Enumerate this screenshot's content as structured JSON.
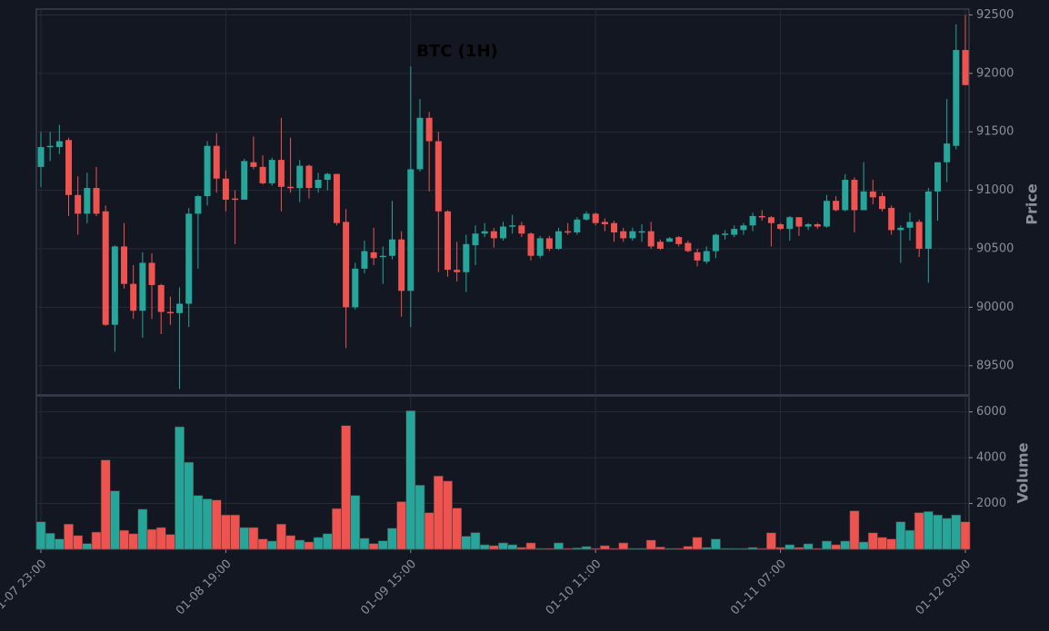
{
  "chart_data": {
    "type": "candlestick",
    "title": "BTC (1H)",
    "y_label": "Price",
    "volume_label": "Volume",
    "categories": [
      "01-07 23:00",
      null,
      null,
      null,
      null,
      null,
      null,
      null,
      null,
      null,
      null,
      null,
      null,
      null,
      null,
      null,
      null,
      null,
      null,
      null,
      "01-08 19:00",
      null,
      null,
      null,
      null,
      null,
      null,
      null,
      null,
      null,
      null,
      null,
      null,
      null,
      null,
      null,
      null,
      null,
      null,
      null,
      "01-09 15:00",
      null,
      null,
      null,
      null,
      null,
      null,
      null,
      null,
      null,
      null,
      null,
      null,
      null,
      null,
      null,
      null,
      null,
      null,
      null,
      "01-10 11:00",
      null,
      null,
      null,
      null,
      null,
      null,
      null,
      null,
      null,
      null,
      null,
      null,
      null,
      null,
      null,
      null,
      null,
      null,
      null,
      "01-11 07:00",
      null,
      null,
      null,
      null,
      null,
      null,
      null,
      null,
      null,
      null,
      null,
      null,
      null,
      null,
      null,
      null,
      null,
      null,
      null,
      "01-12 03:00"
    ],
    "open": [
      91200,
      91370,
      91370,
      91430,
      90960,
      90800,
      91020,
      90820,
      89850,
      90520,
      90200,
      89970,
      90380,
      90190,
      89960,
      89950,
      90030,
      90800,
      90950,
      91380,
      91100,
      90930,
      90920,
      91240,
      91200,
      91060,
      91260,
      91030,
      91020,
      91210,
      91020,
      91090,
      91140,
      90730,
      90000,
      90330,
      90470,
      90430,
      90440,
      90580,
      90140,
      91180,
      91620,
      91420,
      90820,
      90320,
      90300,
      90530,
      90630,
      90650,
      90590,
      90690,
      90700,
      90630,
      90440,
      90590,
      90500,
      90650,
      90640,
      90750,
      90800,
      90730,
      90720,
      90650,
      90590,
      90650,
      90650,
      90560,
      90560,
      90600,
      90550,
      90470,
      90390,
      90480,
      90620,
      90620,
      90660,
      90700,
      90780,
      90770,
      90710,
      90670,
      90770,
      90690,
      90710,
      90690,
      90910,
      90830,
      91090,
      90830,
      90990,
      90950,
      90850,
      90660,
      90680,
      90730,
      90500,
      90990,
      91240,
      91380,
      92200
    ],
    "high": [
      91500,
      91500,
      91560,
      91450,
      91120,
      91150,
      91200,
      90870,
      90530,
      90720,
      90360,
      90470,
      90460,
      90200,
      90090,
      90170,
      90850,
      90960,
      91420,
      91490,
      91170,
      91000,
      91270,
      91460,
      91300,
      91280,
      91620,
      91450,
      91260,
      91220,
      91150,
      91150,
      91140,
      90840,
      90380,
      90570,
      90680,
      90520,
      90910,
      90650,
      92060,
      91780,
      91670,
      91500,
      90830,
      90560,
      90620,
      90700,
      90720,
      90680,
      90730,
      90790,
      90730,
      90640,
      90610,
      90610,
      90680,
      90720,
      90770,
      90820,
      90810,
      90760,
      90740,
      90680,
      90680,
      90710,
      90730,
      90580,
      90600,
      90610,
      90570,
      90500,
      90520,
      90630,
      90660,
      90700,
      90720,
      90810,
      90830,
      90780,
      90720,
      90780,
      90770,
      90720,
      90720,
      90960,
      90950,
      91140,
      91110,
      91240,
      91090,
      90980,
      90870,
      90700,
      90810,
      90750,
      91020,
      91240,
      91780,
      92420,
      92500
    ],
    "low": [
      91030,
      91250,
      91310,
      90780,
      90620,
      90720,
      90780,
      89840,
      89620,
      90160,
      89900,
      89740,
      89900,
      89770,
      89850,
      89300,
      89830,
      90330,
      90870,
      90980,
      90820,
      90540,
      90920,
      91180,
      91050,
      91040,
      90820,
      90980,
      90900,
      90930,
      90980,
      91000,
      90700,
      89650,
      89980,
      90290,
      90360,
      90200,
      90410,
      89920,
      89830,
      91160,
      90990,
      90300,
      90260,
      90220,
      90130,
      90360,
      90600,
      90510,
      90570,
      90630,
      90600,
      90400,
      90420,
      90480,
      90490,
      90620,
      90620,
      90740,
      90700,
      90650,
      90560,
      90560,
      90570,
      90560,
      90500,
      90490,
      90560,
      90520,
      90470,
      90350,
      90370,
      90420,
      90580,
      90600,
      90620,
      90650,
      90740,
      90520,
      90660,
      90570,
      90610,
      90660,
      90670,
      90680,
      90820,
      90820,
      90640,
      90830,
      90880,
      90820,
      90620,
      90380,
      90570,
      90430,
      90210,
      90740,
      91070,
      91350,
      91900
    ],
    "close": [
      91370,
      91380,
      91420,
      90960,
      90800,
      91020,
      90800,
      89850,
      90520,
      90200,
      89970,
      90380,
      90190,
      89960,
      89950,
      90030,
      90800,
      90950,
      91380,
      91100,
      90920,
      90920,
      91250,
      91200,
      91060,
      91260,
      91030,
      91020,
      91210,
      91020,
      91090,
      91140,
      90720,
      90000,
      90330,
      90480,
      90420,
      90440,
      90580,
      90140,
      91180,
      91620,
      91420,
      90820,
      90320,
      90300,
      90540,
      90630,
      90650,
      90590,
      90690,
      90700,
      90630,
      90440,
      90590,
      90500,
      90650,
      90640,
      90750,
      90800,
      90720,
      90710,
      90640,
      90590,
      90650,
      90650,
      90520,
      90500,
      90590,
      90540,
      90480,
      90400,
      90480,
      90620,
      90630,
      90670,
      90700,
      90780,
      90770,
      90720,
      90670,
      90770,
      90690,
      90710,
      90690,
      90910,
      90830,
      91090,
      90830,
      90990,
      90940,
      90840,
      90660,
      90680,
      90730,
      90500,
      90990,
      91240,
      91400,
      92200,
      91900
    ],
    "volume": [
      1200,
      700,
      450,
      1100,
      600,
      250,
      750,
      3900,
      2550,
      830,
      680,
      1750,
      870,
      950,
      650,
      5350,
      3800,
      2350,
      2200,
      2150,
      1500,
      1500,
      950,
      950,
      450,
      360,
      1100,
      600,
      400,
      320,
      520,
      680,
      1780,
      5400,
      2350,
      480,
      250,
      370,
      920,
      2080,
      6050,
      2800,
      1600,
      3200,
      2980,
      1800,
      570,
      730,
      200,
      160,
      280,
      200,
      80,
      280,
      40,
      40,
      280,
      40,
      60,
      120,
      40,
      160,
      40,
      280,
      40,
      40,
      400,
      100,
      40,
      40,
      130,
      520,
      80,
      450,
      40,
      40,
      40,
      80,
      40,
      720,
      80,
      200,
      80,
      240,
      40,
      360,
      200,
      360,
      1680,
      320,
      720,
      520,
      450,
      1200,
      830,
      1600,
      1650,
      1500,
      1350,
      1500,
      1200
    ],
    "ylim": [
      89250,
      92550
    ],
    "yticks": [
      89500,
      90000,
      90500,
      91000,
      91500,
      92000,
      92500
    ],
    "volume_ylim": [
      0,
      6700
    ],
    "volume_yticks": [
      2000,
      4000,
      6000
    ],
    "up_color": "#26a69a",
    "down_color": "#ef5350",
    "grid": true
  }
}
